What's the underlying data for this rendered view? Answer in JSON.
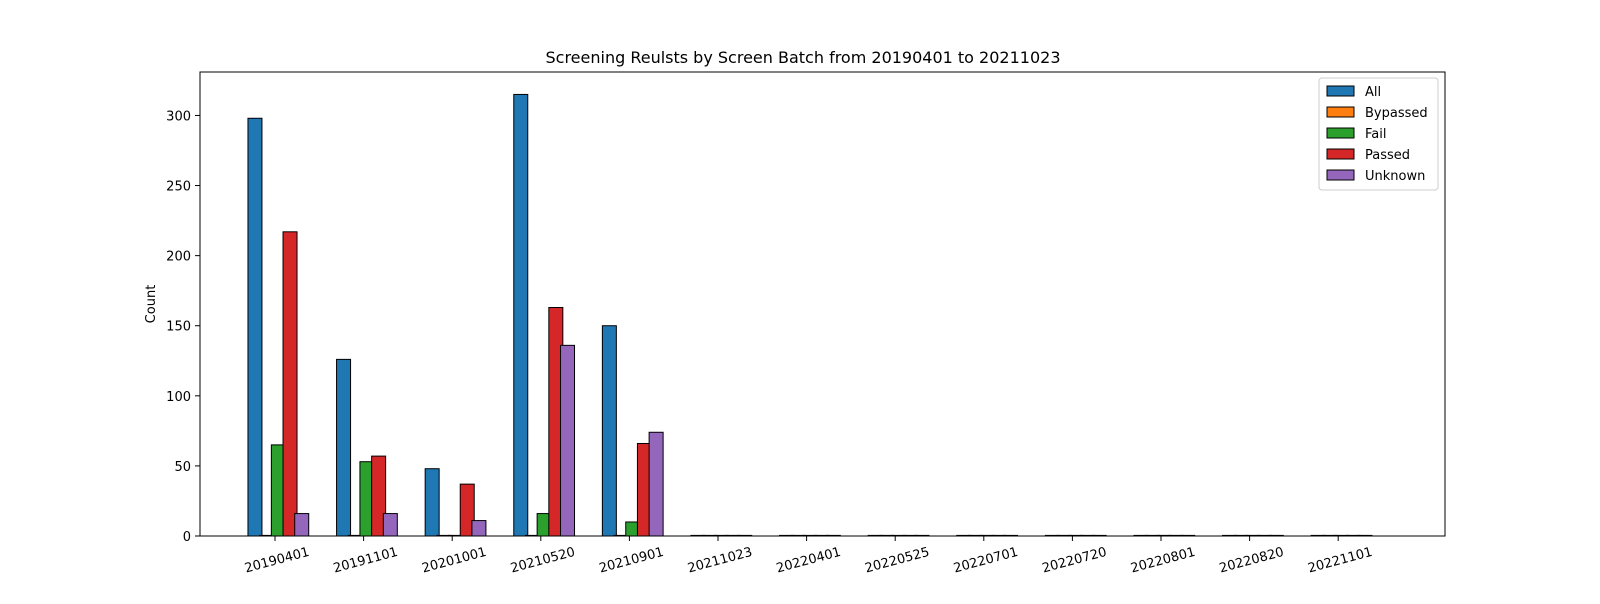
{
  "chart_data": {
    "type": "bar",
    "title": "Screening Reulsts by Screen Batch from 20190401 to 20211023",
    "xlabel": "",
    "ylabel": "Count",
    "categories": [
      "20190401",
      "20191101",
      "20201001",
      "20210520",
      "20210901",
      "20211023",
      "20220401",
      "20220525",
      "20220701",
      "20220720",
      "20220801",
      "20220820",
      "20221101"
    ],
    "series": [
      {
        "name": "All",
        "color": "#1f77b4",
        "values": [
          298,
          126,
          48,
          315,
          150,
          0,
          0,
          0,
          0,
          0,
          0,
          0,
          0
        ]
      },
      {
        "name": "Bypassed",
        "color": "#ff7f0e",
        "values": [
          0,
          0,
          0,
          0,
          0,
          0,
          0,
          0,
          0,
          0,
          0,
          0,
          0
        ]
      },
      {
        "name": "Fail",
        "color": "#2ca02c",
        "values": [
          65,
          53,
          0,
          16,
          10,
          0,
          0,
          0,
          0,
          0,
          0,
          0,
          0
        ]
      },
      {
        "name": "Passed",
        "color": "#d62728",
        "values": [
          217,
          57,
          37,
          163,
          66,
          0,
          0,
          0,
          0,
          0,
          0,
          0,
          0
        ]
      },
      {
        "name": "Unknown",
        "color": "#9467bd",
        "values": [
          16,
          16,
          11,
          136,
          74,
          0,
          0,
          0,
          0,
          0,
          0,
          0,
          0
        ]
      }
    ],
    "ylim": [
      0,
      331
    ],
    "yticks": [
      0,
      50,
      100,
      150,
      200,
      250,
      300
    ],
    "xtick_rotation_deg": -15,
    "grid": false,
    "legend_position": "top-right"
  }
}
